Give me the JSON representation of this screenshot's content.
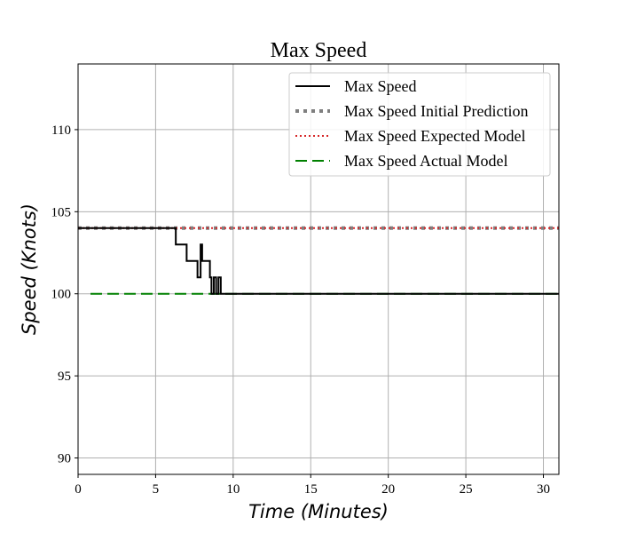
{
  "chart_data": {
    "type": "line",
    "title": "Max Speed",
    "xlabel": "Time (Minutes)",
    "ylabel": "Speed (Knots)",
    "xlim": [
      0,
      31
    ],
    "ylim": [
      89,
      114
    ],
    "xticks": [
      0,
      5,
      10,
      15,
      20,
      25,
      30
    ],
    "yticks": [
      90,
      95,
      100,
      105,
      110
    ],
    "grid": true,
    "legend_position": "top-right",
    "series": [
      {
        "name": "Max Speed",
        "color": "#000000",
        "style": "solid",
        "x": [
          0,
          6.3,
          6.3,
          7.0,
          7.0,
          7.7,
          7.7,
          7.9,
          7.9,
          8.0,
          8.0,
          8.2,
          8.2,
          8.5,
          8.5,
          8.6,
          8.6,
          8.75,
          8.75,
          8.9,
          8.9,
          9.05,
          9.05,
          9.2,
          9.2,
          31
        ],
        "y": [
          104,
          104,
          103,
          103,
          102,
          102,
          101,
          101,
          103,
          103,
          102,
          102,
          102,
          102,
          101,
          101,
          100,
          100,
          101,
          101,
          100,
          100,
          101,
          101,
          100,
          100
        ]
      },
      {
        "name": "Max Speed Initial Prediction",
        "color": "#7f7f7f",
        "style": "dotted-thick",
        "x": [
          0,
          31
        ],
        "y": [
          104,
          104
        ]
      },
      {
        "name": "Max Speed Expected Model",
        "color": "#d62728",
        "style": "dotted",
        "x": [
          0,
          31
        ],
        "y": [
          104,
          104
        ]
      },
      {
        "name": "Max Speed Actual Model",
        "color": "#008000",
        "style": "dashed",
        "x": [
          0.8,
          31
        ],
        "y": [
          100,
          100
        ]
      }
    ]
  }
}
